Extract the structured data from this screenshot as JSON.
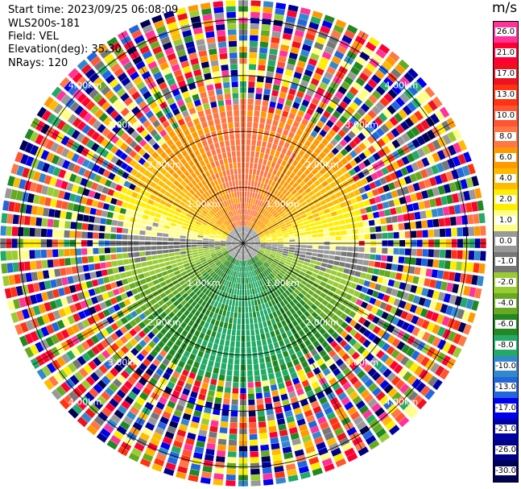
{
  "header": {
    "start_time": "Start time: 2023/09/25 06:08:09",
    "instrument": "WLS200s-181",
    "field": "Field: VEL",
    "elevation": "Elevation(deg): 35.30",
    "nrays": "NRays: 120"
  },
  "chart_data": {
    "type": "heatmap",
    "subtype": "PPI polar scan",
    "field": "VEL",
    "units": "m/s",
    "nrays": 120,
    "elevation_deg": 35.3,
    "range_rings_km": [
      1.0,
      2.0,
      3.0,
      4.0
    ],
    "ring_labels": [
      "1.00km",
      "2.00km",
      "3.00km",
      "4.00km"
    ],
    "colorbar": {
      "unit_label": "m/s",
      "ticks": [
        "26.0",
        "21.0",
        "17.0",
        "13.0",
        "10.0",
        "8.0",
        "6.0",
        "4.0",
        "2.0",
        "1.0",
        "0.0",
        "-1.0",
        "-2.0",
        "-4.0",
        "-6.0",
        "-8.0",
        "-10.0",
        "-13.0",
        "-17.0",
        "-21.0",
        "-26.0",
        "-30.0"
      ],
      "colors": [
        "#ff3399",
        "#ff0033",
        "#ee1122",
        "#ff3311",
        "#ff5533",
        "#ff7744",
        "#ff9900",
        "#ffbb00",
        "#ffee00",
        "#ffff88",
        "#999999",
        "#777777",
        "#99cc33",
        "#66aa22",
        "#228822",
        "#22aa66",
        "#3388cc",
        "#2266dd",
        "#0000ee",
        "#0000aa",
        "#000088",
        "#000055"
      ]
    },
    "structure": {
      "valid_data_range_km": 2.35,
      "pattern": "Inner disk: positive velocities (red/orange) toward top, yellow band near center, gray near zero along horizontal axis, green and blue negative velocities toward bottom; outer rings beyond ~2.3 km contain random noise of all colors."
    }
  }
}
